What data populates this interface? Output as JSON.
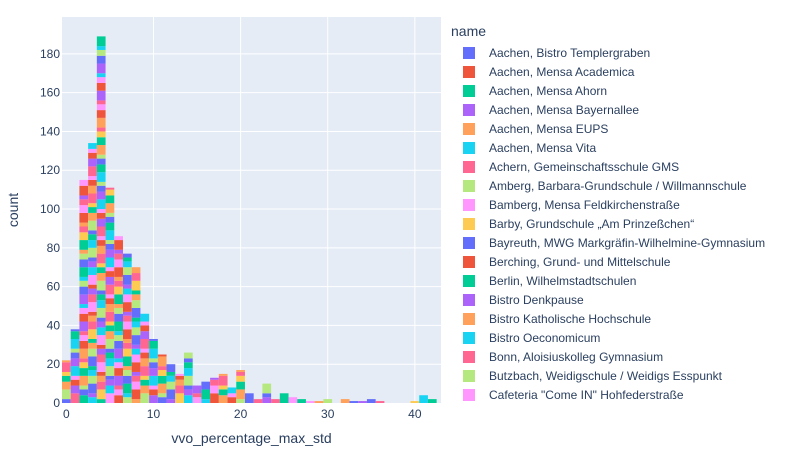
{
  "chart_data": {
    "type": "histogram",
    "title": "",
    "xlabel": "vvo_percentage_max_std",
    "ylabel": "count",
    "barmode": "stacked",
    "xlim": [
      -0.5,
      43
    ],
    "ylim": [
      0,
      199
    ],
    "bin_width": 1,
    "xticks": [
      0,
      10,
      20,
      30,
      40
    ],
    "yticks": [
      0,
      20,
      40,
      60,
      80,
      100,
      120,
      140,
      160,
      180
    ],
    "grid": true,
    "legend_position": "right",
    "legend_title": "name",
    "bins": [
      {
        "x": 0,
        "count": 22
      },
      {
        "x": 1,
        "count": 38
      },
      {
        "x": 2,
        "count": 115
      },
      {
        "x": 3,
        "count": 134
      },
      {
        "x": 4,
        "count": 189
      },
      {
        "x": 5,
        "count": 111
      },
      {
        "x": 6,
        "count": 86
      },
      {
        "x": 7,
        "count": 77
      },
      {
        "x": 8,
        "count": 70
      },
      {
        "x": 9,
        "count": 46
      },
      {
        "x": 10,
        "count": 33
      },
      {
        "x": 11,
        "count": 25
      },
      {
        "x": 12,
        "count": 20
      },
      {
        "x": 13,
        "count": 15
      },
      {
        "x": 14,
        "count": 26
      },
      {
        "x": 15,
        "count": 9
      },
      {
        "x": 16,
        "count": 11
      },
      {
        "x": 17,
        "count": 13
      },
      {
        "x": 18,
        "count": 15
      },
      {
        "x": 19,
        "count": 8
      },
      {
        "x": 20,
        "count": 17
      },
      {
        "x": 21,
        "count": 5
      },
      {
        "x": 22,
        "count": 2
      },
      {
        "x": 23,
        "count": 10
      },
      {
        "x": 24,
        "count": 2
      },
      {
        "x": 25,
        "count": 5
      },
      {
        "x": 26,
        "count": 3
      },
      {
        "x": 27,
        "count": 2
      },
      {
        "x": 28,
        "count": 1
      },
      {
        "x": 29,
        "count": 1
      },
      {
        "x": 30,
        "count": 2
      },
      {
        "x": 32,
        "count": 2
      },
      {
        "x": 33,
        "count": 1
      },
      {
        "x": 34,
        "count": 1
      },
      {
        "x": 35,
        "count": 2
      },
      {
        "x": 36,
        "count": 1
      },
      {
        "x": 40,
        "count": 1
      },
      {
        "x": 41,
        "count": 4
      },
      {
        "x": 42,
        "count": 2
      }
    ],
    "series": [
      {
        "name": "Aachen, Bistro Templergraben",
        "color": "#636efa"
      },
      {
        "name": "Aachen, Mensa Academica",
        "color": "#EF553B"
      },
      {
        "name": "Aachen, Mensa Ahorn",
        "color": "#00cc96"
      },
      {
        "name": "Aachen, Mensa Bayernallee",
        "color": "#ab63fa"
      },
      {
        "name": "Aachen, Mensa EUPS",
        "color": "#FFA15A"
      },
      {
        "name": "Aachen, Mensa Vita",
        "color": "#19d3f3"
      },
      {
        "name": "Achern, Gemeinschaftsschule GMS",
        "color": "#FF6692"
      },
      {
        "name": "Amberg, Barbara-Grundschule / Willmannschule",
        "color": "#B6E880"
      },
      {
        "name": "Bamberg, Mensa Feldkirchenstraße",
        "color": "#FF97FF"
      },
      {
        "name": "Barby, Grundschule „Am Prinzeßchen“",
        "color": "#FECB52"
      },
      {
        "name": "Bayreuth, MWG Markgräfin-Wilhelmine-Gymnasium",
        "color": "#636efa"
      },
      {
        "name": "Berching, Grund- und Mittelschule",
        "color": "#EF553B"
      },
      {
        "name": "Berlin, Wilhelmstadtschulen",
        "color": "#00cc96"
      },
      {
        "name": "Bistro Denkpause",
        "color": "#ab63fa"
      },
      {
        "name": "Bistro Katholische Hochschule",
        "color": "#FFA15A"
      },
      {
        "name": "Bistro Oeconomicum",
        "color": "#19d3f3"
      },
      {
        "name": "Bonn, Aloisiuskolleg Gymnasium",
        "color": "#FF6692"
      },
      {
        "name": "Butzbach, Weidigschule / Weidigs Esspunkt",
        "color": "#B6E880"
      },
      {
        "name": "Cafeteria \"Come IN\" Hohfederstraße",
        "color": "#FF97FF"
      }
    ]
  }
}
